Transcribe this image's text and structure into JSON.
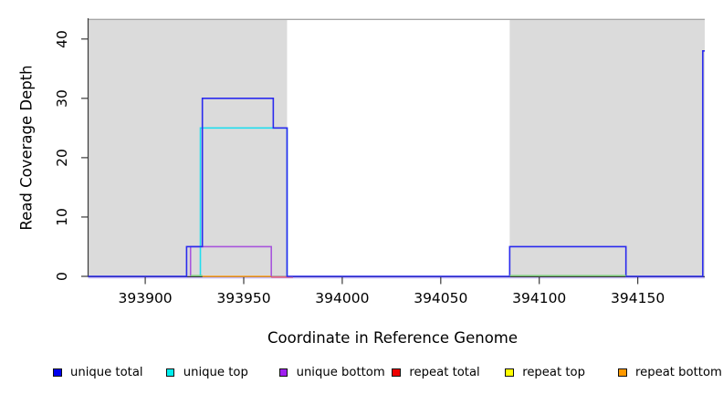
{
  "chart_data": {
    "type": "line",
    "subtype": "step-coverage-plot",
    "title": "",
    "xlabel": "Coordinate in Reference Genome",
    "ylabel": "Read Coverage Depth",
    "xlim": [
      393871,
      394184
    ],
    "ylim": [
      0,
      43.5
    ],
    "x_ticks": [
      393900,
      393950,
      394000,
      394050,
      394100,
      394150
    ],
    "y_ticks": [
      0,
      10,
      20,
      30,
      40
    ],
    "grid": false,
    "legend_position": "bottom",
    "background_color": "#ffffff",
    "region_fill_color": "#DBDBDB",
    "region_border_color": "#A6A6A6",
    "axis_color": "#3a3a3a",
    "shaded_regions": [
      {
        "x1": 393871,
        "x2": 393972
      },
      {
        "x1": 394085,
        "x2": 394184
      }
    ],
    "region_top_value": 43.3,
    "series": [
      {
        "name": "unique total",
        "color": "#2A2AEE",
        "legend_color": "#0000EE",
        "points": [
          [
            393871,
            0
          ],
          [
            393921,
            0
          ],
          [
            393921,
            5
          ],
          [
            393929,
            5
          ],
          [
            393929,
            30
          ],
          [
            393965,
            30
          ],
          [
            393965,
            25
          ],
          [
            393972,
            25
          ],
          [
            393972,
            0
          ],
          [
            394085,
            0
          ],
          [
            394085,
            5
          ],
          [
            394144,
            5
          ],
          [
            394144,
            0
          ],
          [
            394183,
            0
          ],
          [
            394183,
            38
          ],
          [
            394184,
            38
          ]
        ]
      },
      {
        "name": "unique top",
        "color": "#22DDEE",
        "legend_color": "#00EEEE",
        "points": [
          [
            393928,
            0
          ],
          [
            393928,
            25
          ],
          [
            393972,
            25
          ],
          [
            393972,
            0
          ]
        ]
      },
      {
        "name": "unique bottom",
        "color": "#A855DC",
        "legend_color": "#A020F0",
        "points": [
          [
            393923,
            0
          ],
          [
            393923,
            5
          ],
          [
            393964,
            5
          ],
          [
            393964,
            0
          ]
        ]
      },
      {
        "name": "repeat total",
        "color": "#E0607A",
        "legend_color": "#EE0000",
        "dy": 0.8,
        "points": [
          [
            393964,
            0
          ],
          [
            393975,
            0
          ]
        ]
      },
      {
        "name": "repeat top",
        "color": "#EDED22",
        "legend_color": "#FFFF00",
        "points": []
      },
      {
        "name": "repeat bottom",
        "color": "#FFA124",
        "legend_color": "#FF9900",
        "points": [
          [
            393929,
            0
          ],
          [
            393964,
            0
          ]
        ]
      }
    ],
    "overlay_segments": [
      {
        "color": "#77CE77",
        "x1": 393923,
        "x2": 393929,
        "y": 0
      },
      {
        "color": "#77CE77",
        "x1": 394085,
        "x2": 394144,
        "y": 0
      }
    ],
    "baseline_halo_color": "#9C86EE"
  }
}
